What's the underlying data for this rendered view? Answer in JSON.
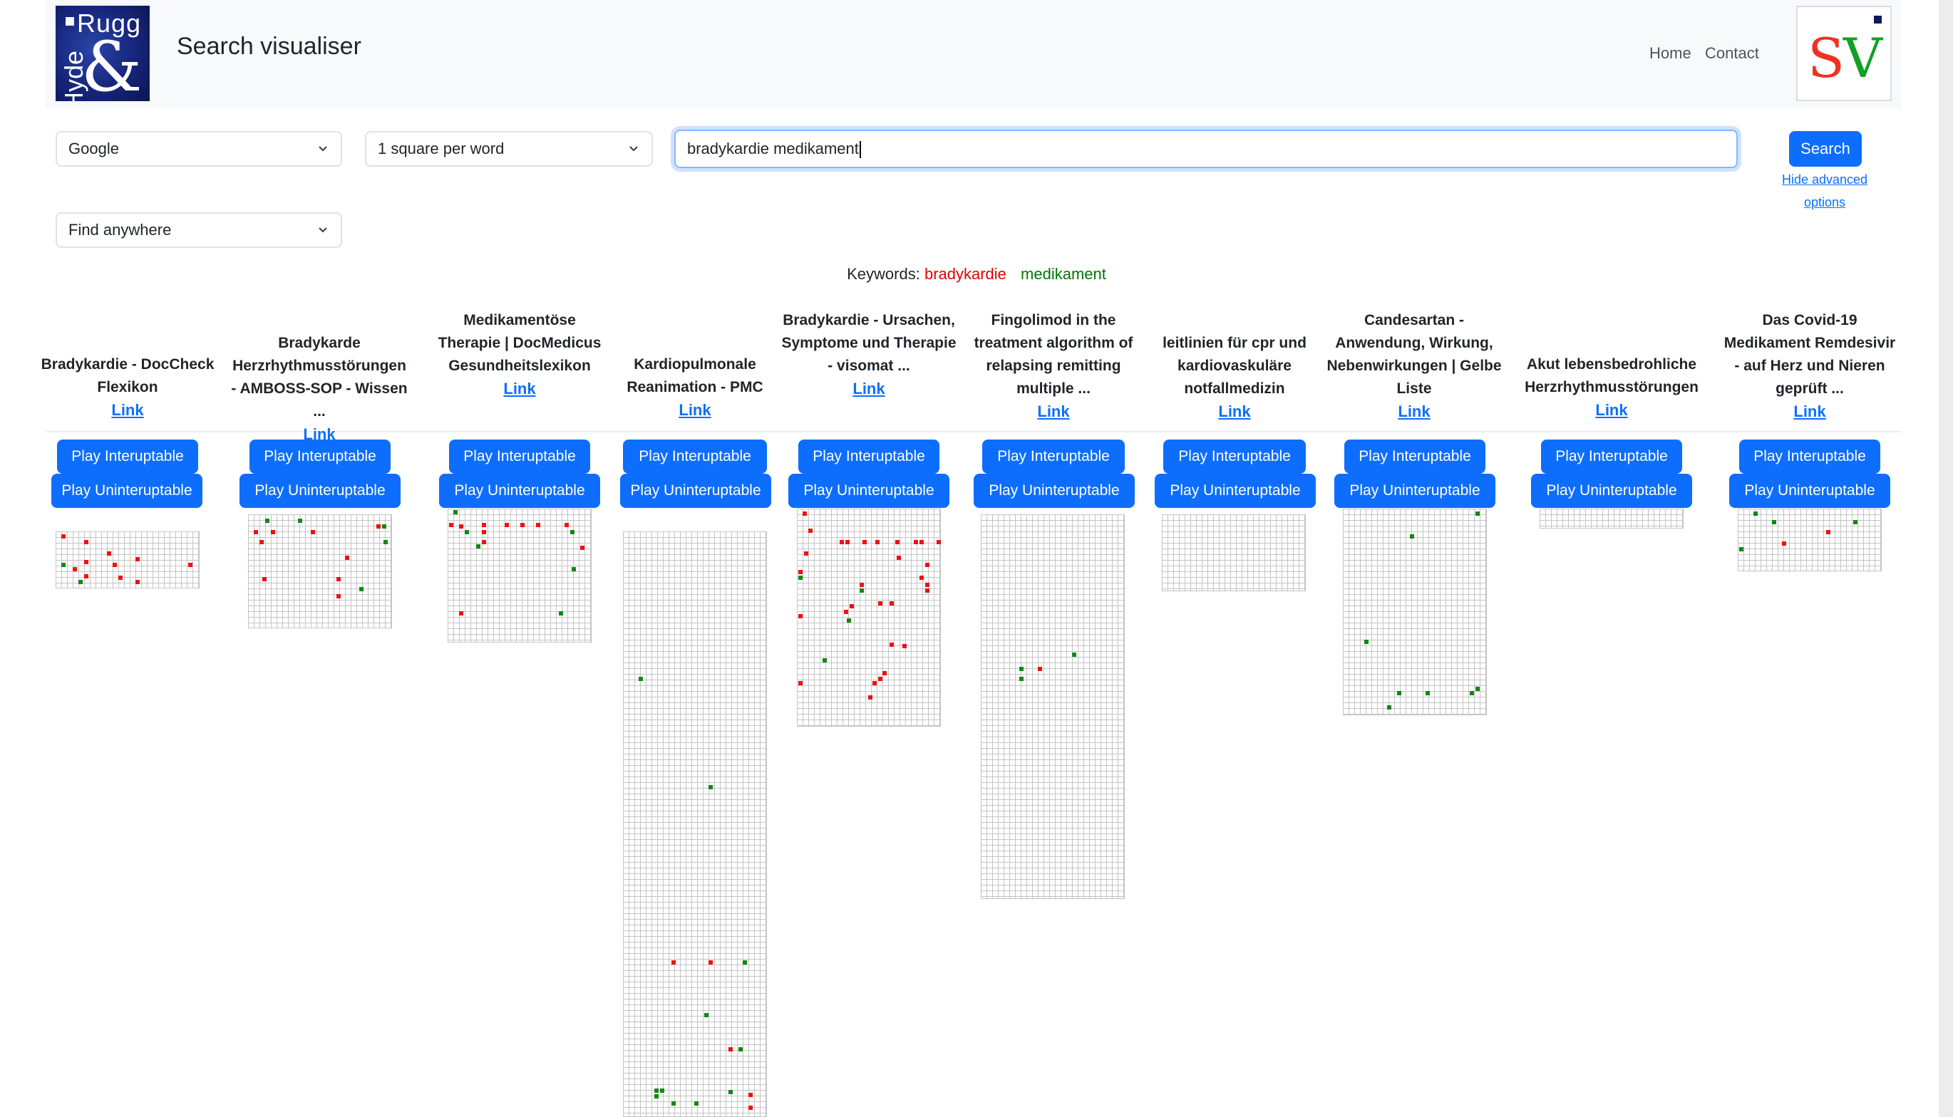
{
  "navbar": {
    "logo_text_top": "Rugg",
    "logo_text_side": "Hyde",
    "logo_text_amp": "&",
    "brand": "Search visualiser",
    "links": [
      "Home",
      "Contact"
    ],
    "sv_logo": {
      "s": "S",
      "v": "V"
    }
  },
  "controls": {
    "engine": "Google",
    "square_mode": "1 square per word",
    "find_mode": "Find anywhere",
    "query": "bradykardie medikament",
    "search_label": "Search",
    "advanced_label": "Hide advanced options"
  },
  "keywords": {
    "label": "Keywords:",
    "items": [
      {
        "word": "bradykardie",
        "color": "#e00000"
      },
      {
        "word": "medikament",
        "color": "#007700"
      }
    ]
  },
  "ui": {
    "play_interruptable": "Play Interuptable",
    "play_uninterruptable": "Play Uninteruptable",
    "link_label": "Link"
  },
  "results": [
    {
      "title": "Bradykardie - DocCheck Flexikon"
    },
    {
      "title": "Bradykarde Herzrhythmusstörungen - AMBOSS-SOP - Wissen ..."
    },
    {
      "title": "Medikamentöse Therapie | DocMedicus Gesundheitslexikon"
    },
    {
      "title": "Kardiopulmonale Reanimation - PMC"
    },
    {
      "title": "Bradykardie - Ursachen, Symptome und Therapie - visomat ..."
    },
    {
      "title": "Fingolimod in the treatment algorithm of relapsing remitting multiple ..."
    },
    {
      "title": "leitlinien für cpr und kardiovaskuläre notfallmedizin"
    },
    {
      "title": "Candesartan - Anwendung, Wirkung, Nebenwirkungen | Gelbe Liste"
    },
    {
      "title": "Akut lebensbedrohliche Herzrhythmusstörungen"
    },
    {
      "title": "Das Covid-19 Medikament Remdesivir - auf Herz und Nieren geprüft ..."
    }
  ]
}
